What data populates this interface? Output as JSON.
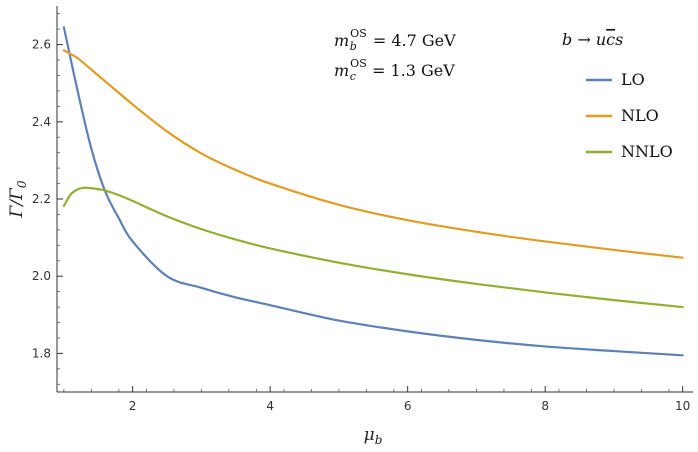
{
  "chart_data": {
    "type": "line",
    "xlabel": "μ_b",
    "ylabel": "Γ/Γ_0",
    "xlim": [
      0.9,
      10.15
    ],
    "ylim": [
      1.7,
      2.7
    ],
    "xticks": [
      2,
      4,
      6,
      8,
      10
    ],
    "yticks": [
      1.8,
      2.0,
      2.2,
      2.4,
      2.6
    ],
    "xtick_labels": [
      "2",
      "4",
      "6",
      "8",
      "10"
    ],
    "ytick_labels": [
      "1.8",
      "2.0",
      "2.2",
      "2.4",
      "2.6"
    ],
    "grid": false,
    "legend_title": "b → uc̄s",
    "legend_position": "top-right",
    "annotations": [
      "m_b^OS = 4.7 GeV",
      "m_c^OS = 1.3 GeV"
    ],
    "series": [
      {
        "name": "LO",
        "color": "#5E81B5",
        "x": [
          1.0,
          1.2,
          1.4,
          1.6,
          1.8,
          2.0,
          2.5,
          3.0,
          3.5,
          4.0,
          5.0,
          6.0,
          7.0,
          8.0,
          9.0,
          10.0
        ],
        "y": [
          2.645,
          2.48,
          2.33,
          2.22,
          2.15,
          2.09,
          2.0,
          1.97,
          1.945,
          1.925,
          1.885,
          1.857,
          1.835,
          1.818,
          1.806,
          1.795
        ]
      },
      {
        "name": "NLO",
        "color": "#E19C24",
        "x": [
          1.0,
          1.2,
          1.4,
          1.6,
          1.8,
          2.0,
          2.5,
          3.0,
          3.5,
          4.0,
          5.0,
          6.0,
          7.0,
          8.0,
          9.0,
          10.0
        ],
        "y": [
          2.585,
          2.565,
          2.535,
          2.505,
          2.475,
          2.445,
          2.375,
          2.318,
          2.275,
          2.24,
          2.185,
          2.145,
          2.115,
          2.09,
          2.068,
          2.048
        ]
      },
      {
        "name": "NNLO",
        "color": "#8FB032",
        "x": [
          1.0,
          1.1,
          1.2,
          1.3,
          1.4,
          1.6,
          1.8,
          2.0,
          2.5,
          3.0,
          3.5,
          4.0,
          5.0,
          6.0,
          7.0,
          8.0,
          9.0,
          10.0
        ],
        "y": [
          2.182,
          2.212,
          2.225,
          2.229,
          2.228,
          2.222,
          2.21,
          2.195,
          2.155,
          2.122,
          2.095,
          2.072,
          2.035,
          2.005,
          1.98,
          1.958,
          1.938,
          1.92
        ]
      }
    ]
  }
}
